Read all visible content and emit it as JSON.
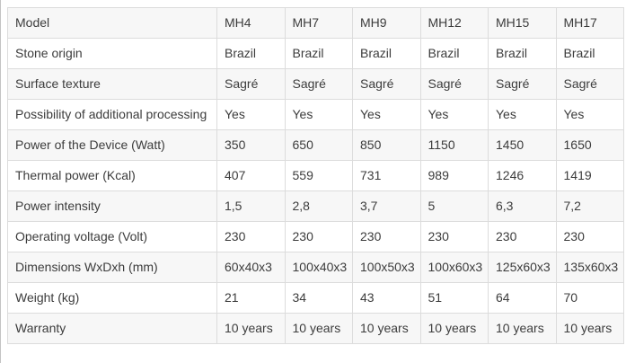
{
  "table": {
    "type": "table",
    "description": "Product specification comparison table",
    "columns": [
      "Model",
      "MH4",
      "MH7",
      "MH9",
      "MH12",
      "MH15",
      "MH17"
    ],
    "rows": [
      {
        "label": "Model",
        "values": [
          "MH4",
          "MH7",
          "MH9",
          "MH12",
          "MH15",
          "MH17"
        ]
      },
      {
        "label": "Stone origin",
        "values": [
          "Brazil",
          "Brazil",
          "Brazil",
          "Brazil",
          "Brazil",
          "Brazil"
        ]
      },
      {
        "label": "Surface texture",
        "values": [
          "Sagré",
          "Sagré",
          "Sagré",
          "Sagré",
          "Sagré",
          "Sagré"
        ]
      },
      {
        "label": "Possibility of additional processing",
        "values": [
          "Yes",
          "Yes",
          "Yes",
          "Yes",
          "Yes",
          "Yes"
        ]
      },
      {
        "label": "Power of the Device (Watt)",
        "values": [
          "350",
          "650",
          "850",
          "1150",
          "1450",
          "1650"
        ]
      },
      {
        "label": "Thermal power (Kcal)",
        "values": [
          "407",
          "559",
          "731",
          "989",
          "1246",
          "1419"
        ]
      },
      {
        "label": "Power intensity",
        "values": [
          "1,5",
          "2,8",
          "3,7",
          "5",
          "6,3",
          "7,2"
        ]
      },
      {
        "label": "Operating voltage (Volt)",
        "values": [
          "230",
          "230",
          "230",
          "230",
          "230",
          "230"
        ]
      },
      {
        "label": "Dimensions WxDxh (mm)",
        "values": [
          "60x40x3",
          "100x40x3",
          "100x50x3",
          "100x60x3",
          "125x60x3",
          "135x60x3"
        ]
      },
      {
        "label": "Weight (kg)",
        "values": [
          "21",
          "34",
          "43",
          "51",
          "64",
          "70"
        ]
      },
      {
        "label": "Warranty",
        "values": [
          "10 years",
          "10 years",
          "10 years",
          "10 years",
          "10 years",
          "10 years"
        ]
      }
    ],
    "colors": {
      "stripe_bg": "#f7f7f7",
      "plain_bg": "#ffffff",
      "border": "#dcdcdc",
      "text": "#3c3c3c"
    }
  }
}
